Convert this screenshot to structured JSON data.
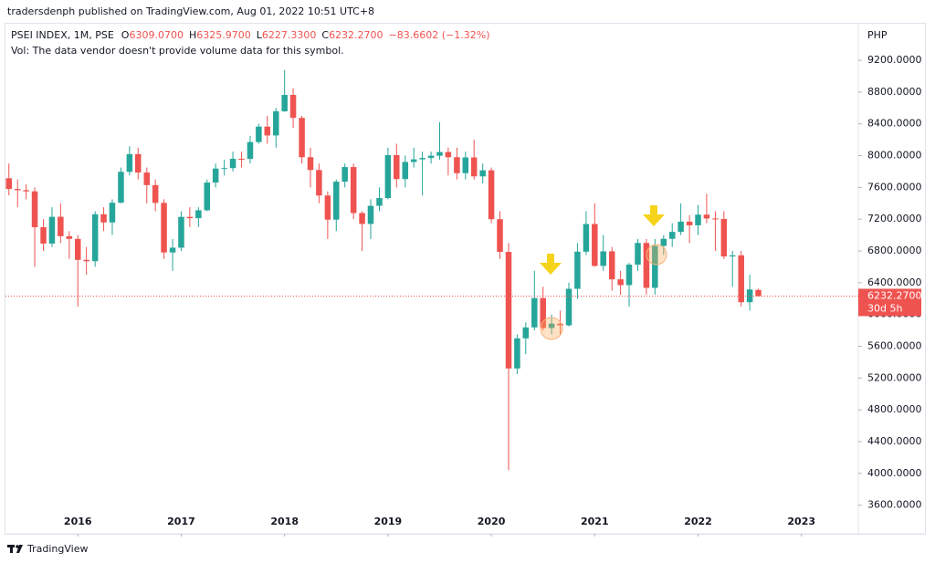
{
  "header": {
    "publisher": "tradersdenph published on TradingView.com, Aug 01, 2022 10:51 UTC+8",
    "brand": "TradingView"
  },
  "chart_data": {
    "type": "candlestick",
    "title": "PSEI INDEX, 1M, PSE",
    "ohlc_legend": [
      {
        "label": "O",
        "value": "6309.0700"
      },
      {
        "label": "H",
        "value": "6325.9700"
      },
      {
        "label": "L",
        "value": "6227.3300"
      },
      {
        "label": "C",
        "value": "6232.2700"
      }
    ],
    "change": "−83.6602 (−1.32%)",
    "subtitle": "Vol: The data vendor doesn't provide volume data for this symbol.",
    "y_axis_unit": "PHP",
    "last_price_label": "6232.2700",
    "countdown": "30d 5h",
    "up_color": "#26a69a",
    "down_color": "#ef5350",
    "xlim": [
      2015.3,
      2023.55
    ],
    "xticks": [
      2016,
      2017,
      2018,
      2019,
      2020,
      2021,
      2022,
      2023
    ],
    "ylim": [
      3240,
      9660
    ],
    "yticks": [
      {
        "value": 3600,
        "label": "3600.0000"
      },
      {
        "value": 4000,
        "label": "4000.0000"
      },
      {
        "value": 4400,
        "label": "4400.0000"
      },
      {
        "value": 4800,
        "label": "4800.0000"
      },
      {
        "value": 5200,
        "label": "5200.0000"
      },
      {
        "value": 5600,
        "label": "5600.0000"
      },
      {
        "value": 6000,
        "label": "6000.0000"
      },
      {
        "value": 6400,
        "label": "6400.0000"
      },
      {
        "value": 6800,
        "label": "6800.0000"
      },
      {
        "value": 7200,
        "label": "7200.0000"
      },
      {
        "value": 7600,
        "label": "7600.0000"
      },
      {
        "value": 8000,
        "label": "8000.0000"
      },
      {
        "value": 8400,
        "label": "8400.0000"
      },
      {
        "value": 8800,
        "label": "8800.0000"
      },
      {
        "value": 9200,
        "label": "9200.0000"
      }
    ],
    "x": [
      2015.333,
      2015.417,
      2015.5,
      2015.583,
      2015.667,
      2015.75,
      2015.833,
      2015.917,
      2016,
      2016.083,
      2016.167,
      2016.25,
      2016.333,
      2016.417,
      2016.5,
      2016.583,
      2016.667,
      2016.75,
      2016.833,
      2016.917,
      2017,
      2017.083,
      2017.167,
      2017.25,
      2017.333,
      2017.417,
      2017.5,
      2017.583,
      2017.667,
      2017.75,
      2017.833,
      2017.917,
      2018,
      2018.083,
      2018.167,
      2018.25,
      2018.333,
      2018.417,
      2018.5,
      2018.583,
      2018.667,
      2018.75,
      2018.833,
      2018.917,
      2019,
      2019.083,
      2019.167,
      2019.25,
      2019.333,
      2019.417,
      2019.5,
      2019.583,
      2019.667,
      2019.75,
      2019.833,
      2019.917,
      2020,
      2020.083,
      2020.167,
      2020.25,
      2020.333,
      2020.417,
      2020.5,
      2020.583,
      2020.667,
      2020.75,
      2020.833,
      2020.917,
      2021,
      2021.083,
      2021.167,
      2021.25,
      2021.333,
      2021.417,
      2021.5,
      2021.583,
      2021.667,
      2021.75,
      2021.833,
      2021.917,
      2022,
      2022.083,
      2022.167,
      2022.25,
      2022.333,
      2022.417,
      2022.5,
      2022.583
    ],
    "open": [
      7715,
      7580,
      7565,
      7550,
      7099,
      6893,
      7230,
      6986,
      6952,
      6688,
      6671,
      7262,
      7159,
      7407,
      7796,
      8019,
      7787,
      7629,
      7405,
      6781,
      6841,
      7229,
      7212,
      7312,
      7661,
      7837,
      7843,
      7960,
      7959,
      8171,
      8365,
      8254,
      8558,
      8764,
      8475,
      7980,
      7819,
      7498,
      7194,
      7672,
      7856,
      7277,
      7140,
      7368,
      7466,
      8007,
      7705,
      7920,
      7953,
      7970,
      7999,
      8045,
      7980,
      7779,
      7977,
      7739,
      7815,
      7200,
      6788,
      5321,
      5700,
      5838,
      6207,
      5830,
      5885,
      5864,
      6324,
      6791,
      7139,
      6612,
      6795,
      6443,
      6370,
      6628,
      6901,
      6336,
      6864,
      6953,
      7040,
      7169,
      7123,
      7257,
      7209,
      7203,
      6731,
      6745,
      6155,
      6309.07
    ],
    "high": [
      7900,
      7700,
      7640,
      7600,
      7200,
      7350,
      7400,
      7050,
      7000,
      6850,
      7300,
      7350,
      7450,
      7850,
      8120,
      8100,
      7850,
      7700,
      7450,
      6950,
      7300,
      7350,
      7350,
      7700,
      7900,
      7950,
      8050,
      8050,
      8250,
      8400,
      8500,
      8600,
      9078,
      8850,
      8500,
      8100,
      7900,
      7550,
      7700,
      7900,
      7900,
      7300,
      7450,
      7600,
      8100,
      8150,
      8000,
      8100,
      8050,
      8050,
      8420,
      8100,
      8100,
      8050,
      8200,
      7900,
      7850,
      7300,
      6900,
      5750,
      5900,
      6550,
      6350,
      6000,
      6050,
      6400,
      6900,
      7300,
      7400,
      7000,
      6850,
      6550,
      6650,
      6950,
      6950,
      6950,
      7000,
      7150,
      7400,
      7250,
      7380,
      7520,
      7300,
      7300,
      6800,
      6800,
      6500,
      6325.97
    ],
    "low": [
      7500,
      7350,
      7450,
      6600,
      6800,
      6850,
      6900,
      6700,
      6100,
      6500,
      6600,
      7050,
      7000,
      7400,
      7750,
      7700,
      7400,
      7300,
      6700,
      6550,
      6800,
      7100,
      7100,
      7300,
      7600,
      7750,
      7800,
      7850,
      7900,
      8150,
      8150,
      8100,
      8550,
      8350,
      7900,
      7600,
      7400,
      6950,
      7050,
      7600,
      7200,
      6800,
      6950,
      7300,
      7450,
      7600,
      7600,
      7850,
      7500,
      7900,
      7950,
      7750,
      7700,
      7700,
      7700,
      7650,
      7150,
      6700,
      4039,
      5250,
      5500,
      5800,
      5800,
      5750,
      5750,
      5850,
      6200,
      6750,
      6600,
      6550,
      6300,
      6250,
      6100,
      6550,
      6250,
      6250,
      6750,
      6850,
      7000,
      6900,
      7000,
      7150,
      6800,
      6700,
      6350,
      6100,
      6050,
      6227.33
    ],
    "close": [
      7580,
      7565,
      7550,
      7099,
      6893,
      7230,
      6986,
      6952,
      6688,
      6671,
      7262,
      7159,
      7407,
      7796,
      8019,
      7787,
      7629,
      7405,
      6781,
      6841,
      7229,
      7212,
      7312,
      7661,
      7837,
      7843,
      7960,
      7959,
      8171,
      8365,
      8254,
      8558,
      8764,
      8475,
      7980,
      7819,
      7498,
      7194,
      7672,
      7856,
      7277,
      7140,
      7368,
      7466,
      8007,
      7705,
      7920,
      7953,
      7970,
      7999,
      8045,
      7980,
      7779,
      7977,
      7739,
      7815,
      7200,
      6788,
      5321,
      5700,
      5838,
      6207,
      5830,
      5885,
      5864,
      6324,
      6791,
      7139,
      6612,
      6795,
      6443,
      6370,
      6628,
      6901,
      6336,
      6864,
      6953,
      7040,
      7169,
      7123,
      7257,
      7209,
      7203,
      6731,
      6745,
      6155,
      6315,
      6232.27
    ]
  }
}
